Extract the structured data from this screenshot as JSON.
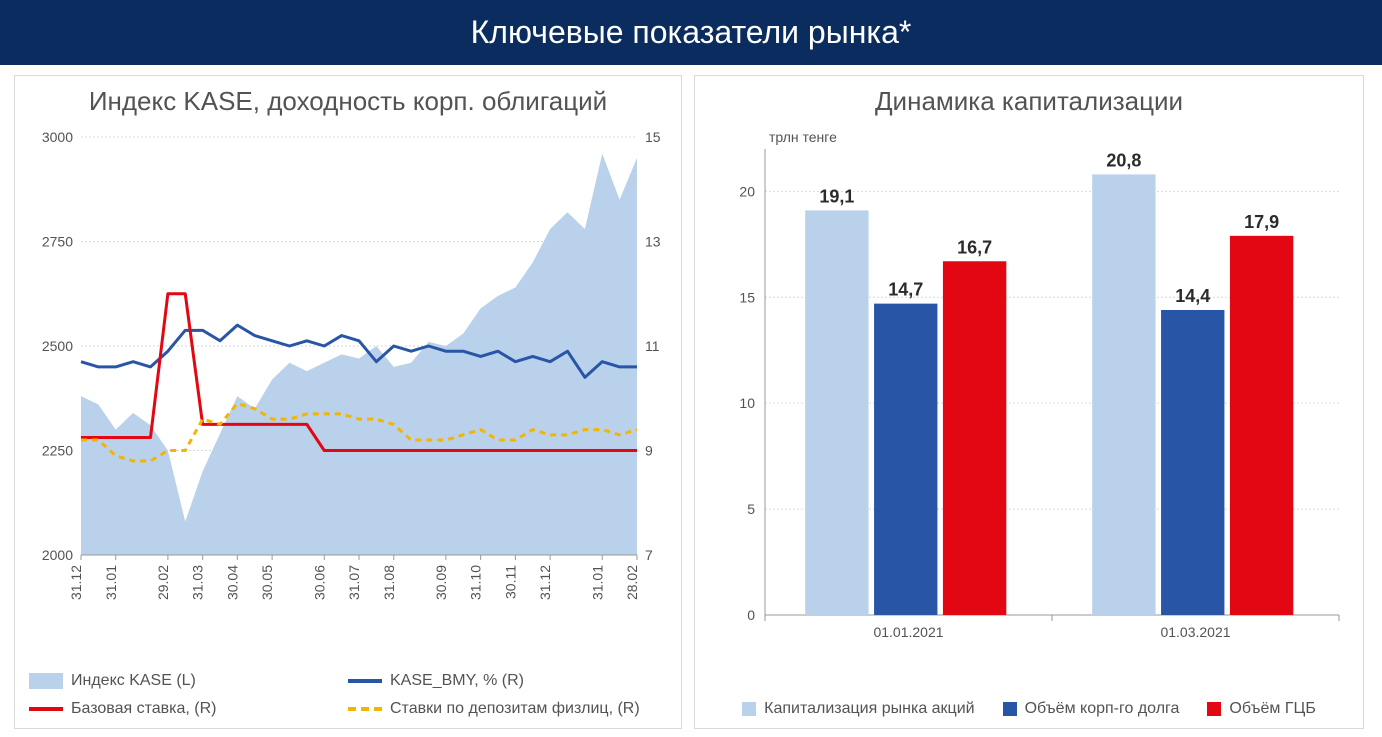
{
  "page": {
    "title": "Ключевые показатели рынка*",
    "title_bg": "#0b2c5e",
    "title_color": "#ffffff"
  },
  "line_chart": {
    "type": "area-line-combo",
    "title": "Индекс KASE, доходность корп. облигаций",
    "title_fontsize": 26,
    "title_color": "#535353",
    "left_ylim": [
      2000,
      3000
    ],
    "left_yticks": [
      2000,
      2250,
      2500,
      2750,
      3000
    ],
    "right_ylim": [
      7,
      15
    ],
    "right_yticks": [
      7,
      9,
      11,
      13,
      15
    ],
    "x_labels": [
      "31.12",
      "31.01",
      "29.02",
      "31.03",
      "30.04",
      "30.05",
      "30.06",
      "31.07",
      "31.08",
      "30.09",
      "31.10",
      "30.11",
      "31.12",
      "31.01",
      "28.02"
    ],
    "grid_color": "#d9d9d9",
    "area": {
      "color": "#b9d1ea",
      "values": [
        2380,
        2360,
        2300,
        2340,
        2310,
        2250,
        2080,
        2200,
        2290,
        2380,
        2350,
        2420,
        2460,
        2440,
        2460,
        2480,
        2470,
        2500,
        2450,
        2460,
        2510,
        2500,
        2530,
        2590,
        2620,
        2640,
        2700,
        2780,
        2820,
        2780,
        2960,
        2850,
        2950
      ]
    },
    "series": [
      {
        "name": "KASE_BMY, % (R)",
        "axis": "right",
        "color": "#2855a6",
        "width": 3,
        "dash": "none",
        "values": [
          10.7,
          10.6,
          10.6,
          10.7,
          10.6,
          10.9,
          11.3,
          11.3,
          11.1,
          11.4,
          11.2,
          11.1,
          11.0,
          11.1,
          11.0,
          11.2,
          11.1,
          10.7,
          11.0,
          10.9,
          11.0,
          10.9,
          10.9,
          10.8,
          10.9,
          10.7,
          10.8,
          10.7,
          10.9,
          10.4,
          10.7,
          10.6,
          10.6
        ]
      },
      {
        "name": "Базовая ставка, (R)",
        "axis": "right",
        "color": "#e30613",
        "width": 3,
        "dash": "none",
        "values": [
          9.25,
          9.25,
          9.25,
          9.25,
          9.25,
          12.0,
          12.0,
          9.5,
          9.5,
          9.5,
          9.5,
          9.5,
          9.5,
          9.5,
          9.0,
          9.0,
          9.0,
          9.0,
          9.0,
          9.0,
          9.0,
          9.0,
          9.0,
          9.0,
          9.0,
          9.0,
          9.0,
          9.0,
          9.0,
          9.0,
          9.0,
          9.0,
          9.0
        ]
      },
      {
        "name": "Ставки по депозитам физлиц, (R)",
        "axis": "right",
        "color": "#f5b400",
        "width": 3,
        "dash": "6,5",
        "values": [
          9.2,
          9.2,
          8.9,
          8.8,
          8.8,
          9.0,
          9.0,
          9.6,
          9.5,
          9.9,
          9.8,
          9.6,
          9.6,
          9.7,
          9.7,
          9.7,
          9.6,
          9.6,
          9.5,
          9.2,
          9.2,
          9.2,
          9.3,
          9.4,
          9.2,
          9.2,
          9.4,
          9.3,
          9.3,
          9.4,
          9.4,
          9.3,
          9.4
        ]
      }
    ],
    "legend": [
      {
        "swatch": "area",
        "label": "Индекс KASE (L)",
        "color": "#b9d1ea"
      },
      {
        "swatch": "line",
        "label": "KASE_BMY, % (R)",
        "color": "#2855a6"
      },
      {
        "swatch": "line",
        "label": "Базовая ставка, (R)",
        "color": "#e30613"
      },
      {
        "swatch": "dash",
        "label": "Ставки по депозитам физлиц, (R)",
        "color": "#f5b400"
      }
    ]
  },
  "bar_chart": {
    "type": "grouped-bar",
    "title": "Динамика капитализации",
    "title_fontsize": 26,
    "title_color": "#535353",
    "y_unit": "трлн тенге",
    "ylim": [
      0,
      22
    ],
    "yticks": [
      0,
      5,
      10,
      15,
      20
    ],
    "x_categories": [
      "01.01.2021",
      "01.03.2021"
    ],
    "grid_color": "#d9d9d9",
    "series": [
      {
        "name": "Капитализация рынка акций",
        "color": "#b9d1ea",
        "values": [
          19.1,
          20.8
        ],
        "labels": [
          "19,1",
          "20,8"
        ]
      },
      {
        "name": "Объём корп-го долга",
        "color": "#2855a6",
        "values": [
          14.7,
          14.4
        ],
        "labels": [
          "14,7",
          "14,4"
        ]
      },
      {
        "name": "Объём ГЦБ",
        "color": "#e30613",
        "values": [
          16.7,
          17.9
        ],
        "labels": [
          "16,7",
          "17,9"
        ]
      }
    ],
    "bar_group_width": 0.72
  }
}
